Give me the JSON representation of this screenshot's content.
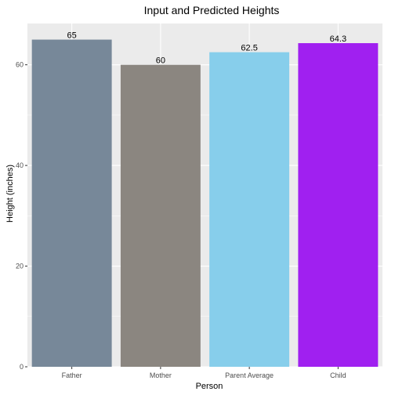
{
  "chart_data": {
    "type": "bar",
    "title": "Input and Predicted Heights",
    "xlabel": "Person",
    "ylabel": "Height (inches)",
    "categories": [
      "Father",
      "Mother",
      "Parent Average",
      "Child"
    ],
    "values": [
      65,
      60,
      62.5,
      64.3
    ],
    "data_labels": [
      "65",
      "60",
      "62.5",
      "64.3"
    ],
    "colors": [
      "#778899",
      "#8b8680",
      "#87ceeb",
      "#a020f0"
    ],
    "ylim": [
      0,
      68.2
    ],
    "yticks": [
      0,
      20,
      40,
      60
    ],
    "ytick_labels": [
      "0",
      "20",
      "40",
      "60"
    ],
    "yminor_ticks": [
      10,
      30,
      50
    ],
    "grid": true,
    "legend": "none",
    "panel_background": "#ebebeb",
    "gridline_color": "#ffffff"
  }
}
